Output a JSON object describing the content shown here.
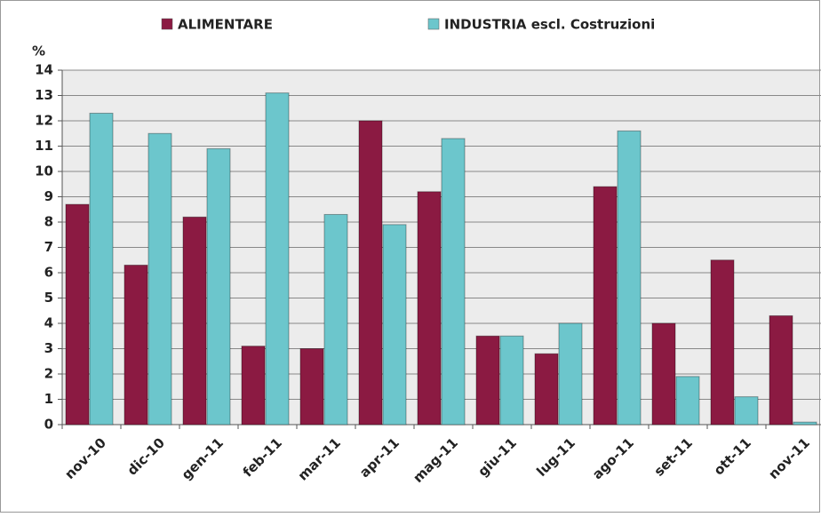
{
  "chart_data": {
    "type": "bar",
    "y_label": "%",
    "categories": [
      "nov-10",
      "dic-10",
      "gen-11",
      "feb-11",
      "mar-11",
      "apr-11",
      "mag-11",
      "giu-11",
      "lug-11",
      "ago-11",
      "set-11",
      "ott-11",
      "nov-11"
    ],
    "series": [
      {
        "name": "ALIMENTARE",
        "color": "#8b1a42",
        "values": [
          8.7,
          6.3,
          8.2,
          3.1,
          3.0,
          12.0,
          9.2,
          3.5,
          2.8,
          9.4,
          4.0,
          6.5,
          4.3
        ]
      },
      {
        "name": "INDUSTRIA escl. Costruzioni",
        "color": "#6cc6cc",
        "values": [
          12.3,
          11.5,
          10.9,
          13.1,
          8.3,
          7.9,
          11.3,
          3.5,
          4.0,
          11.6,
          1.9,
          1.1,
          0.1
        ]
      }
    ],
    "ylim": [
      0,
      14
    ],
    "yticks": [
      0,
      1,
      2,
      3,
      4,
      5,
      6,
      7,
      8,
      9,
      10,
      11,
      12,
      13,
      14
    ],
    "grid": true,
    "legend": "top"
  }
}
